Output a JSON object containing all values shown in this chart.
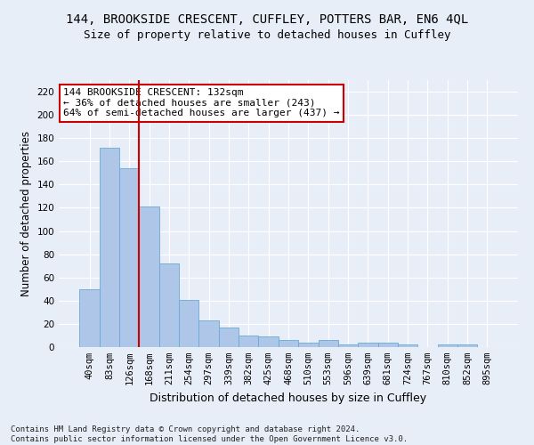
{
  "title1": "144, BROOKSIDE CRESCENT, CUFFLEY, POTTERS BAR, EN6 4QL",
  "title2": "Size of property relative to detached houses in Cuffley",
  "xlabel": "Distribution of detached houses by size in Cuffley",
  "ylabel": "Number of detached properties",
  "footnote1": "Contains HM Land Registry data © Crown copyright and database right 2024.",
  "footnote2": "Contains public sector information licensed under the Open Government Licence v3.0.",
  "categories": [
    "40sqm",
    "83sqm",
    "126sqm",
    "168sqm",
    "211sqm",
    "254sqm",
    "297sqm",
    "339sqm",
    "382sqm",
    "425sqm",
    "468sqm",
    "510sqm",
    "553sqm",
    "596sqm",
    "639sqm",
    "681sqm",
    "724sqm",
    "767sqm",
    "810sqm",
    "852sqm",
    "895sqm"
  ],
  "values": [
    50,
    172,
    154,
    121,
    72,
    41,
    23,
    17,
    10,
    9,
    6,
    4,
    6,
    2,
    4,
    4,
    2,
    0,
    2,
    2,
    0
  ],
  "bar_color": "#aec6e8",
  "bar_edge_color": "#6aabd2",
  "vline_color": "#cc0000",
  "vline_index": 2,
  "annotation_line1": "144 BROOKSIDE CRESCENT: 132sqm",
  "annotation_line2": "← 36% of detached houses are smaller (243)",
  "annotation_line3": "64% of semi-detached houses are larger (437) →",
  "annotation_box_facecolor": "#ffffff",
  "annotation_box_edgecolor": "#cc0000",
  "ylim": [
    0,
    230
  ],
  "yticks": [
    0,
    20,
    40,
    60,
    80,
    100,
    120,
    140,
    160,
    180,
    200,
    220
  ],
  "background_color": "#e8eef8",
  "grid_color": "#ffffff",
  "title1_fontsize": 10,
  "title2_fontsize": 9,
  "xlabel_fontsize": 9,
  "ylabel_fontsize": 8.5,
  "tick_fontsize": 7.5,
  "annotation_fontsize": 8,
  "footnote_fontsize": 6.5
}
